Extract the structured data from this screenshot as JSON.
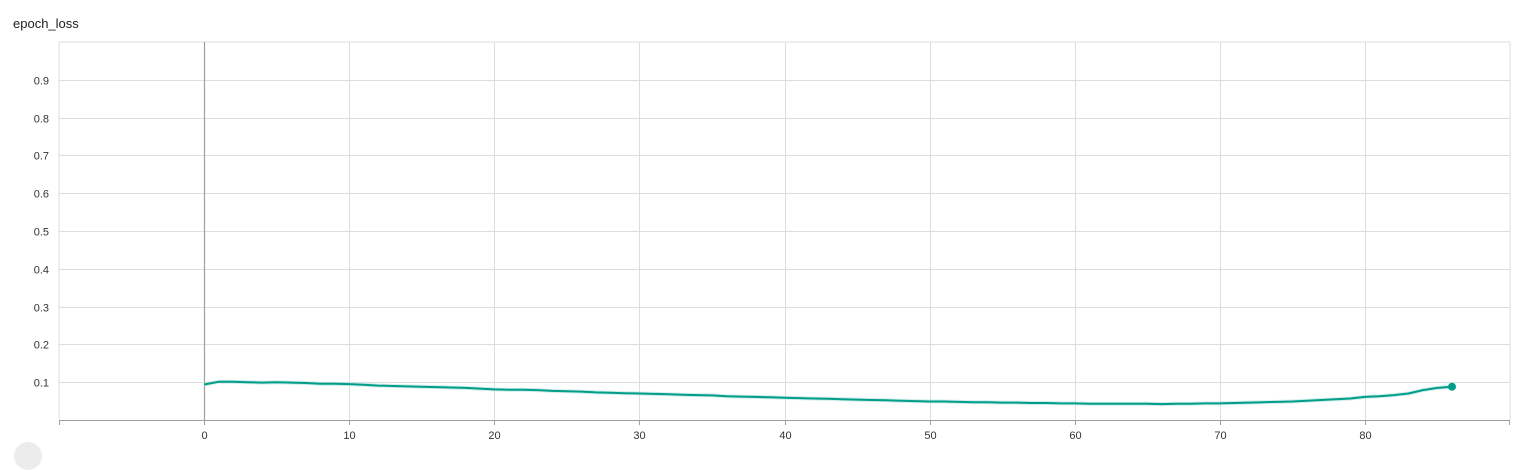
{
  "chart_data": {
    "type": "line",
    "title": "epoch_loss",
    "xlabel": "",
    "ylabel": "",
    "xlim": [
      -10,
      90
    ],
    "ylim": [
      0,
      1.0
    ],
    "x_ticks": [
      0,
      10,
      20,
      30,
      40,
      50,
      60,
      70,
      80
    ],
    "y_ticks": [
      0.1,
      0.2,
      0.3,
      0.4,
      0.5,
      0.6,
      0.7,
      0.8,
      0.9
    ],
    "grid": true,
    "colors": {
      "line": "#009e8a",
      "raw": "#b2dfd8",
      "grid": "#dddddd",
      "axis": "#9e9e9e"
    },
    "series": [
      {
        "name": "epoch_loss",
        "x": [
          0,
          1,
          2,
          3,
          4,
          5,
          6,
          7,
          8,
          9,
          10,
          11,
          12,
          13,
          14,
          15,
          16,
          17,
          18,
          19,
          20,
          21,
          22,
          23,
          24,
          25,
          26,
          27,
          28,
          29,
          30,
          31,
          32,
          33,
          34,
          35,
          36,
          37,
          38,
          39,
          40,
          41,
          42,
          43,
          44,
          45,
          46,
          47,
          48,
          49,
          50,
          51,
          52,
          53,
          54,
          55,
          56,
          57,
          58,
          59,
          60,
          61,
          62,
          63,
          64,
          65,
          66,
          67,
          68,
          69,
          70,
          71,
          72,
          73,
          74,
          75,
          76,
          77,
          78,
          79,
          80,
          81,
          82,
          83,
          84,
          85,
          86
        ],
        "values": [
          0.094,
          0.101,
          0.101,
          0.1,
          0.099,
          0.1,
          0.099,
          0.098,
          0.096,
          0.096,
          0.095,
          0.093,
          0.091,
          0.09,
          0.089,
          0.088,
          0.087,
          0.086,
          0.085,
          0.083,
          0.081,
          0.08,
          0.08,
          0.079,
          0.077,
          0.076,
          0.075,
          0.073,
          0.072,
          0.071,
          0.07,
          0.069,
          0.068,
          0.067,
          0.066,
          0.065,
          0.063,
          0.062,
          0.061,
          0.06,
          0.059,
          0.058,
          0.057,
          0.056,
          0.055,
          0.054,
          0.053,
          0.052,
          0.051,
          0.05,
          0.049,
          0.049,
          0.048,
          0.047,
          0.047,
          0.046,
          0.046,
          0.045,
          0.045,
          0.044,
          0.044,
          0.043,
          0.043,
          0.043,
          0.043,
          0.043,
          0.042,
          0.043,
          0.043,
          0.044,
          0.044,
          0.045,
          0.046,
          0.047,
          0.048,
          0.049,
          0.051,
          0.053,
          0.055,
          0.057,
          0.061,
          0.063,
          0.066,
          0.07,
          0.079,
          0.085,
          0.088
        ]
      }
    ]
  }
}
